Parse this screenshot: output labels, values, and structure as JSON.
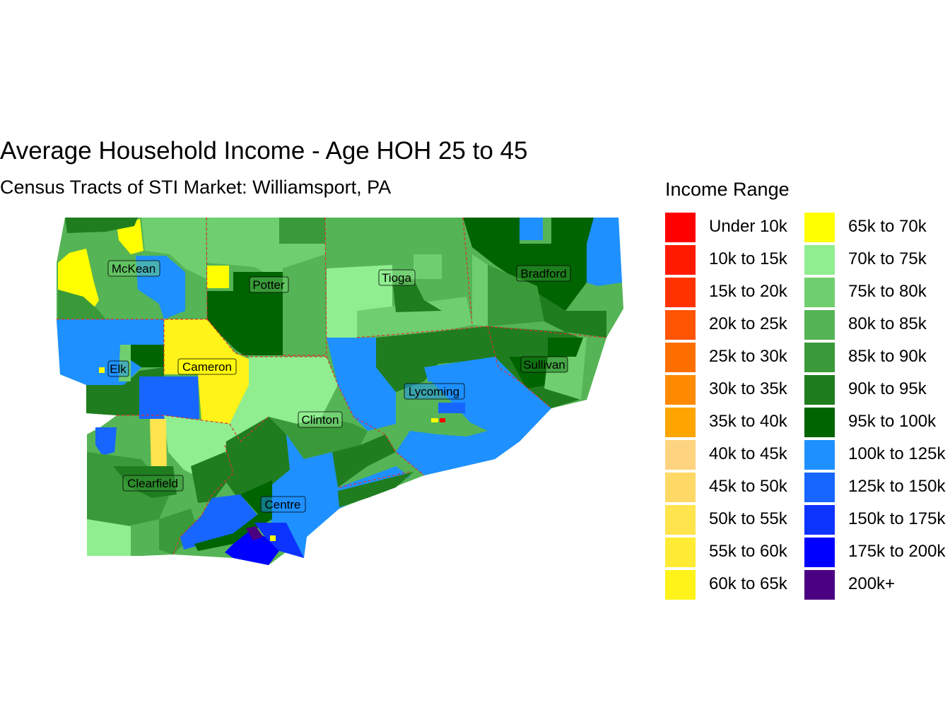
{
  "title": "Average Household Income - Age HOH 25 to 45",
  "subtitle": "Census Tracts of STI Market: Williamsport, PA",
  "legend": {
    "title": "Income Range",
    "items": [
      {
        "label": "Under 10k",
        "color": "#ff0000"
      },
      {
        "label": "10k to 15k",
        "color": "#ff1a00"
      },
      {
        "label": "15k to 20k",
        "color": "#ff3300"
      },
      {
        "label": "20k to 25k",
        "color": "#ff5500"
      },
      {
        "label": "25k to 30k",
        "color": "#ff6f00"
      },
      {
        "label": "30k to 35k",
        "color": "#ff8a00"
      },
      {
        "label": "35k to 40k",
        "color": "#ffa500"
      },
      {
        "label": "40k to 45k",
        "color": "#ffd480"
      },
      {
        "label": "45k to 50k",
        "color": "#ffd966"
      },
      {
        "label": "50k to 55k",
        "color": "#ffe44d"
      },
      {
        "label": "55k to 60k",
        "color": "#ffeb33"
      },
      {
        "label": "60k to 65k",
        "color": "#fff31a"
      },
      {
        "label": "65k to 70k",
        "color": "#ffff00"
      },
      {
        "label": "70k to 75k",
        "color": "#90ee90"
      },
      {
        "label": "75k to 80k",
        "color": "#6fcf6f"
      },
      {
        "label": "80k to 85k",
        "color": "#55b455"
      },
      {
        "label": "85k to 90k",
        "color": "#3a9a3a"
      },
      {
        "label": "90k to 95k",
        "color": "#1f7d1f"
      },
      {
        "label": "95k to 100k",
        "color": "#006400"
      },
      {
        "label": "100k to 125k",
        "color": "#1e90ff"
      },
      {
        "label": "125k to 150k",
        "color": "#1766ff"
      },
      {
        "label": "150k to 175k",
        "color": "#0d33ff"
      },
      {
        "label": "175k to 200k",
        "color": "#0000ff"
      },
      {
        "label": "200k+",
        "color": "#4b0082"
      }
    ]
  },
  "counties": [
    {
      "name": "McKean"
    },
    {
      "name": "Potter"
    },
    {
      "name": "Tioga"
    },
    {
      "name": "Bradford"
    },
    {
      "name": "Elk"
    },
    {
      "name": "Cameron"
    },
    {
      "name": "Sullivan"
    },
    {
      "name": "Lycoming"
    },
    {
      "name": "Clinton"
    },
    {
      "name": "Clearfield"
    },
    {
      "name": "Centre"
    }
  ]
}
